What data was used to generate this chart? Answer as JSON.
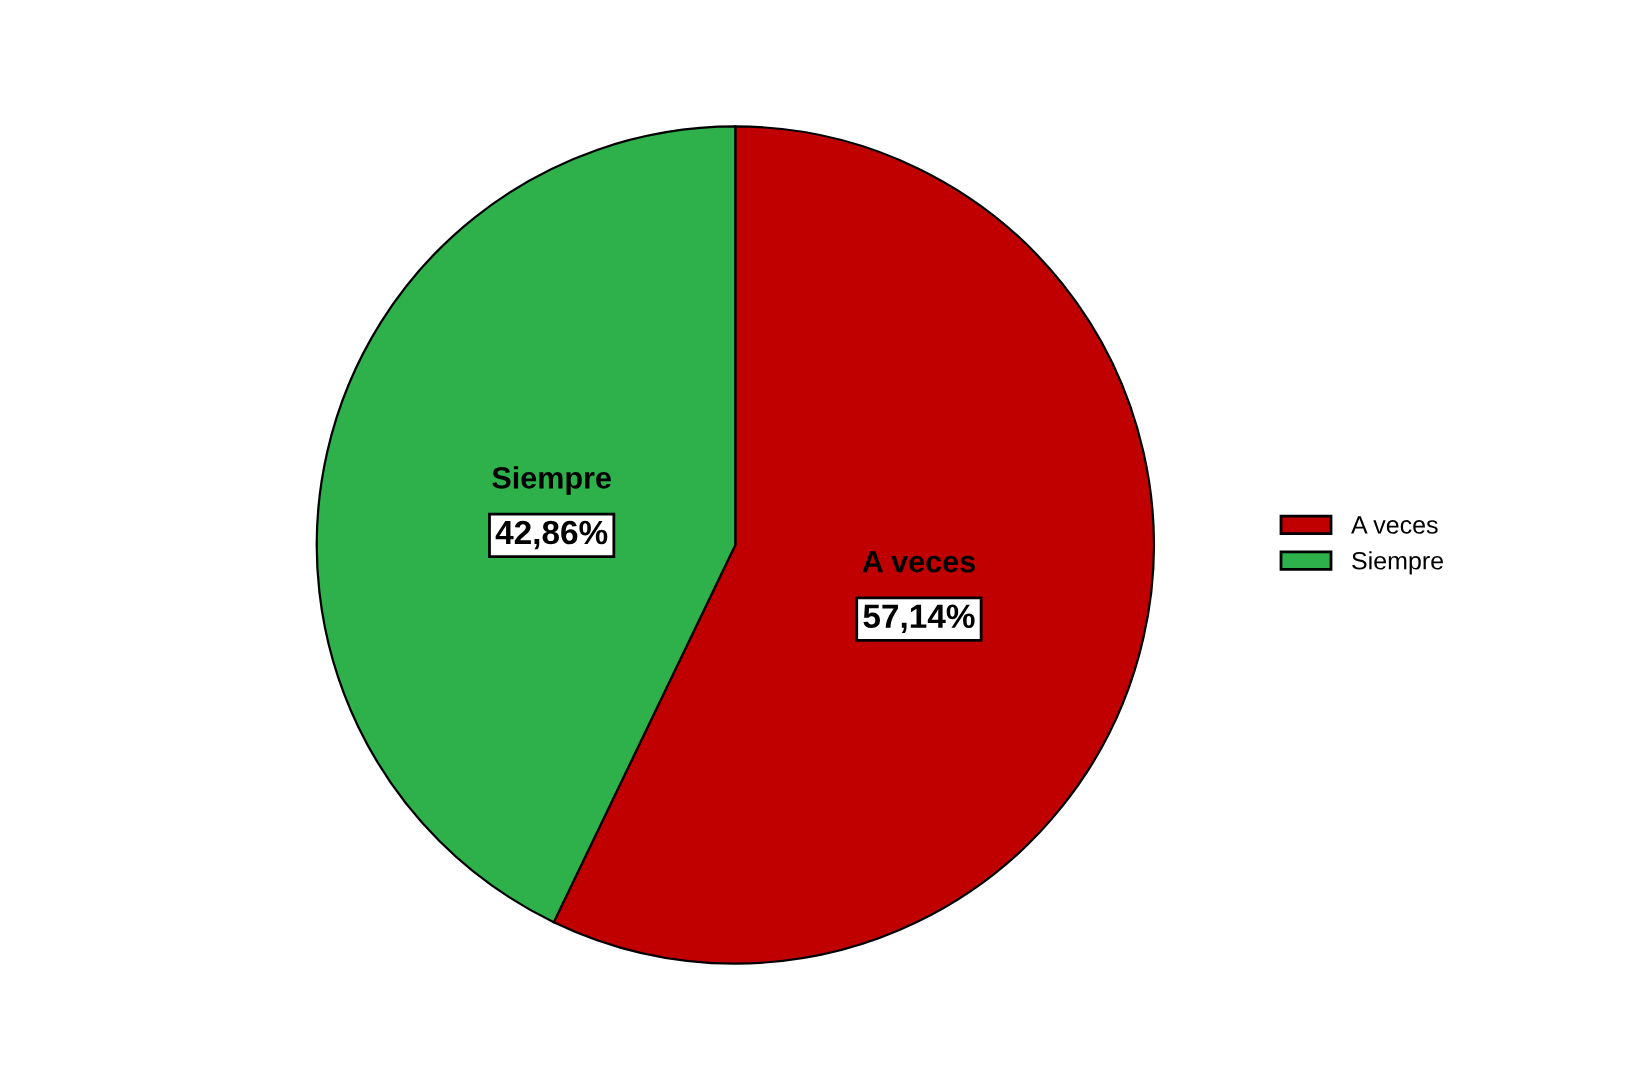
{
  "chart_data": {
    "type": "pie",
    "categories": [
      "A veces",
      "Siempre"
    ],
    "values": [
      57.14,
      42.86
    ],
    "colors": [
      "#c00000",
      "#2eb04b"
    ],
    "value_labels": [
      "57,14%",
      "42,86%"
    ],
    "legend": "right"
  }
}
